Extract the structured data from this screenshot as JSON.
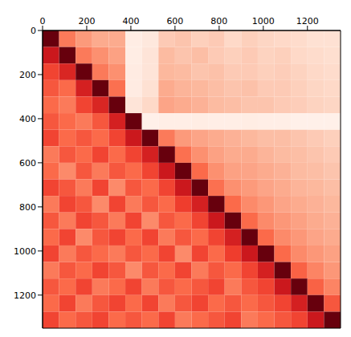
{
  "chart_data": {
    "type": "heatmap",
    "xlim": [
      0,
      1350
    ],
    "ylim": [
      0,
      1350
    ],
    "xticks": [
      0,
      200,
      400,
      600,
      800,
      1000,
      1200
    ],
    "yticks": [
      0,
      200,
      400,
      600,
      800,
      1000,
      1200
    ],
    "zlim": [
      0,
      1
    ],
    "cells": [
      [
        1.0,
        0.45,
        0.35,
        0.3,
        0.3,
        0.05,
        0.08,
        0.2,
        0.22,
        0.18,
        0.2,
        0.15,
        0.18,
        0.16,
        0.15,
        0.14,
        0.12,
        0.12
      ],
      [
        0.75,
        1.0,
        0.45,
        0.38,
        0.33,
        0.05,
        0.1,
        0.25,
        0.22,
        0.24,
        0.2,
        0.18,
        0.2,
        0.17,
        0.18,
        0.15,
        0.14,
        0.13
      ],
      [
        0.6,
        0.7,
        1.0,
        0.45,
        0.38,
        0.06,
        0.1,
        0.26,
        0.25,
        0.22,
        0.23,
        0.2,
        0.2,
        0.18,
        0.19,
        0.17,
        0.15,
        0.14
      ],
      [
        0.55,
        0.5,
        0.72,
        1.0,
        0.48,
        0.06,
        0.12,
        0.3,
        0.27,
        0.26,
        0.24,
        0.22,
        0.23,
        0.2,
        0.2,
        0.18,
        0.16,
        0.15
      ],
      [
        0.5,
        0.45,
        0.6,
        0.7,
        1.0,
        0.1,
        0.15,
        0.32,
        0.3,
        0.28,
        0.25,
        0.24,
        0.22,
        0.22,
        0.2,
        0.19,
        0.17,
        0.16
      ],
      [
        0.55,
        0.5,
        0.45,
        0.55,
        0.72,
        1.0,
        0.03,
        0.04,
        0.04,
        0.05,
        0.04,
        0.04,
        0.05,
        0.04,
        0.04,
        0.03,
        0.03,
        0.03
      ],
      [
        0.6,
        0.5,
        0.55,
        0.5,
        0.6,
        0.75,
        1.0,
        0.45,
        0.35,
        0.32,
        0.3,
        0.28,
        0.26,
        0.24,
        0.24,
        0.22,
        0.2,
        0.18
      ],
      [
        0.45,
        0.55,
        0.5,
        0.6,
        0.5,
        0.6,
        0.72,
        1.0,
        0.48,
        0.38,
        0.33,
        0.3,
        0.3,
        0.27,
        0.25,
        0.24,
        0.22,
        0.2
      ],
      [
        0.5,
        0.4,
        0.55,
        0.45,
        0.55,
        0.5,
        0.6,
        0.75,
        1.0,
        0.5,
        0.38,
        0.33,
        0.32,
        0.3,
        0.28,
        0.25,
        0.24,
        0.22
      ],
      [
        0.6,
        0.55,
        0.45,
        0.6,
        0.4,
        0.55,
        0.5,
        0.6,
        0.75,
        1.0,
        0.48,
        0.38,
        0.35,
        0.32,
        0.3,
        0.27,
        0.26,
        0.24
      ],
      [
        0.45,
        0.6,
        0.55,
        0.4,
        0.6,
        0.45,
        0.55,
        0.5,
        0.62,
        0.72,
        1.0,
        0.5,
        0.4,
        0.36,
        0.32,
        0.3,
        0.28,
        0.26
      ],
      [
        0.55,
        0.45,
        0.6,
        0.55,
        0.45,
        0.6,
        0.4,
        0.55,
        0.5,
        0.6,
        0.75,
        1.0,
        0.5,
        0.4,
        0.36,
        0.33,
        0.3,
        0.28
      ],
      [
        0.5,
        0.6,
        0.4,
        0.55,
        0.6,
        0.5,
        0.6,
        0.45,
        0.55,
        0.5,
        0.6,
        0.72,
        1.0,
        0.5,
        0.4,
        0.36,
        0.32,
        0.3
      ],
      [
        0.6,
        0.45,
        0.55,
        0.5,
        0.45,
        0.55,
        0.5,
        0.6,
        0.4,
        0.6,
        0.5,
        0.62,
        0.75,
        1.0,
        0.5,
        0.4,
        0.36,
        0.33
      ],
      [
        0.45,
        0.55,
        0.5,
        0.6,
        0.55,
        0.4,
        0.55,
        0.5,
        0.6,
        0.45,
        0.55,
        0.5,
        0.6,
        0.72,
        1.0,
        0.52,
        0.42,
        0.36
      ],
      [
        0.55,
        0.5,
        0.6,
        0.45,
        0.5,
        0.6,
        0.45,
        0.55,
        0.5,
        0.55,
        0.6,
        0.45,
        0.55,
        0.6,
        0.75,
        1.0,
        0.52,
        0.42
      ],
      [
        0.5,
        0.6,
        0.45,
        0.55,
        0.6,
        0.5,
        0.6,
        0.45,
        0.55,
        0.6,
        0.5,
        0.55,
        0.5,
        0.55,
        0.6,
        0.72,
        1.0,
        0.55
      ],
      [
        0.6,
        0.5,
        0.55,
        0.6,
        0.5,
        0.55,
        0.5,
        0.6,
        0.45,
        0.5,
        0.55,
        0.6,
        0.45,
        0.5,
        0.55,
        0.6,
        0.75,
        1.0
      ]
    ]
  }
}
